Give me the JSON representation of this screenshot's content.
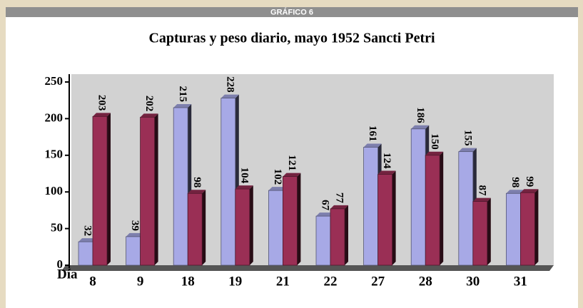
{
  "header": "GRÁFICO 6",
  "chart_data": {
    "type": "bar",
    "title": "Capturas y peso diario, mayo 1952 Sancti Petri",
    "x_label": "Día",
    "categories": [
      "8",
      "9",
      "18",
      "19",
      "21",
      "22",
      "27",
      "28",
      "30",
      "31"
    ],
    "series": [
      {
        "color": "#a7a9e6",
        "values": [
          32,
          39,
          215,
          228,
          102,
          67,
          161,
          186,
          155,
          98
        ]
      },
      {
        "color": "#9a2f55",
        "values": [
          203,
          202,
          98,
          104,
          121,
          77,
          124,
          150,
          87,
          99
        ]
      }
    ],
    "ylim": [
      0,
      250
    ],
    "yticks": [
      0,
      50,
      100,
      150,
      200,
      250
    ]
  }
}
